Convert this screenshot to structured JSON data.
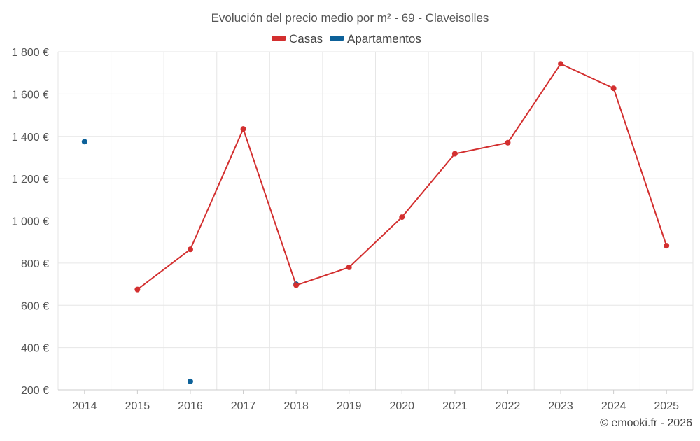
{
  "chart_data": {
    "type": "line",
    "title": "Evolución del precio medio por m² - 69 - Claveisolles",
    "categories": [
      "2014",
      "2015",
      "2016",
      "2017",
      "2018",
      "2019",
      "2020",
      "2021",
      "2022",
      "2023",
      "2024",
      "2025"
    ],
    "ylim": [
      200,
      1800
    ],
    "yticks": [
      200,
      400,
      600,
      800,
      1000,
      1200,
      1400,
      1600,
      1800
    ],
    "ytick_labels": [
      "200 €",
      "400 €",
      "600 €",
      "800 €",
      "1 000 €",
      "1 200 €",
      "1 400 €",
      "1 600 €",
      "1 800 €"
    ],
    "grid": true,
    "legend_position": "top-center",
    "series": [
      {
        "name": "Casas",
        "color": "#d32f2f",
        "values": [
          null,
          675,
          865,
          1435,
          695,
          780,
          1018,
          1318,
          1370,
          1743,
          1627,
          882
        ]
      },
      {
        "name": "Apartamentos",
        "color": "#0d6199",
        "values": [
          1375,
          null,
          240,
          null,
          700,
          null,
          null,
          null,
          null,
          null,
          null,
          null
        ]
      }
    ]
  },
  "credit": "© emooki.fr - 2026"
}
